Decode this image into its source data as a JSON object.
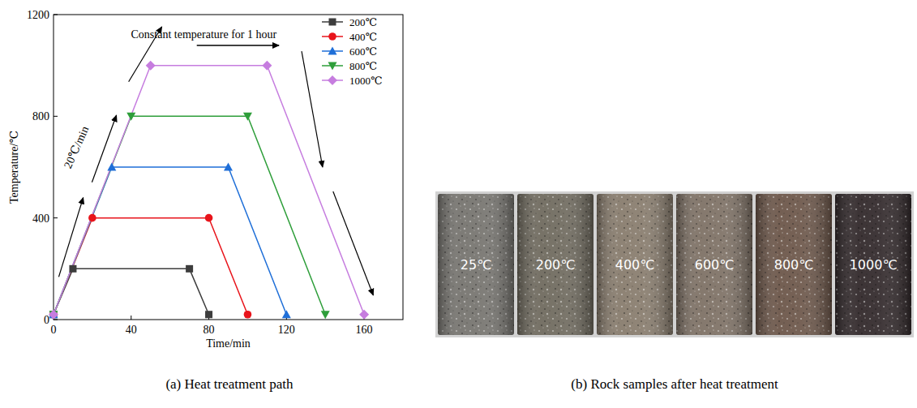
{
  "chart_data": {
    "type": "line",
    "title": "(a) Heat treatment path",
    "x_label": "Time/min",
    "y_label": "Temperature/℃",
    "annotations": [
      "Constant temperature for 1 hour",
      "20℃/min"
    ],
    "xlim": [
      0,
      180
    ],
    "xticks": [
      0,
      40,
      80,
      120,
      160
    ],
    "ylim": [
      0,
      1200
    ],
    "yticks": [
      0,
      400,
      800,
      1200
    ],
    "grid": false,
    "legend": "top-right",
    "series": [
      {
        "name": "200℃",
        "color": "#3d3d3d",
        "marker": "square",
        "x": [
          0,
          10,
          70,
          80
        ],
        "values": [
          20,
          200,
          200,
          20
        ]
      },
      {
        "name": "400℃",
        "color": "#e8141b",
        "marker": "circle",
        "x": [
          0,
          20,
          80,
          100
        ],
        "values": [
          20,
          400,
          400,
          20
        ]
      },
      {
        "name": "600℃",
        "color": "#1f6fd8",
        "marker": "triangle",
        "x": [
          0,
          30,
          90,
          120
        ],
        "values": [
          20,
          600,
          600,
          20
        ]
      },
      {
        "name": "800℃",
        "color": "#2e9e3a",
        "marker": "triangle-down",
        "x": [
          0,
          40,
          100,
          140
        ],
        "values": [
          20,
          800,
          800,
          20
        ]
      },
      {
        "name": "1000℃",
        "color": "#c67ddf",
        "marker": "diamond",
        "x": [
          0,
          50,
          110,
          160
        ],
        "values": [
          20,
          1000,
          1000,
          20
        ]
      }
    ]
  },
  "photo": {
    "caption": "(b) Rock samples after heat treatment",
    "samples": [
      {
        "label": "25℃",
        "color": "#75736e"
      },
      {
        "label": "200℃",
        "color": "#6e695d"
      },
      {
        "label": "400℃",
        "color": "#877b6c"
      },
      {
        "label": "600℃",
        "color": "#7d7064"
      },
      {
        "label": "800℃",
        "color": "#6b5548"
      },
      {
        "label": "1000℃",
        "color": "#302729"
      }
    ]
  }
}
